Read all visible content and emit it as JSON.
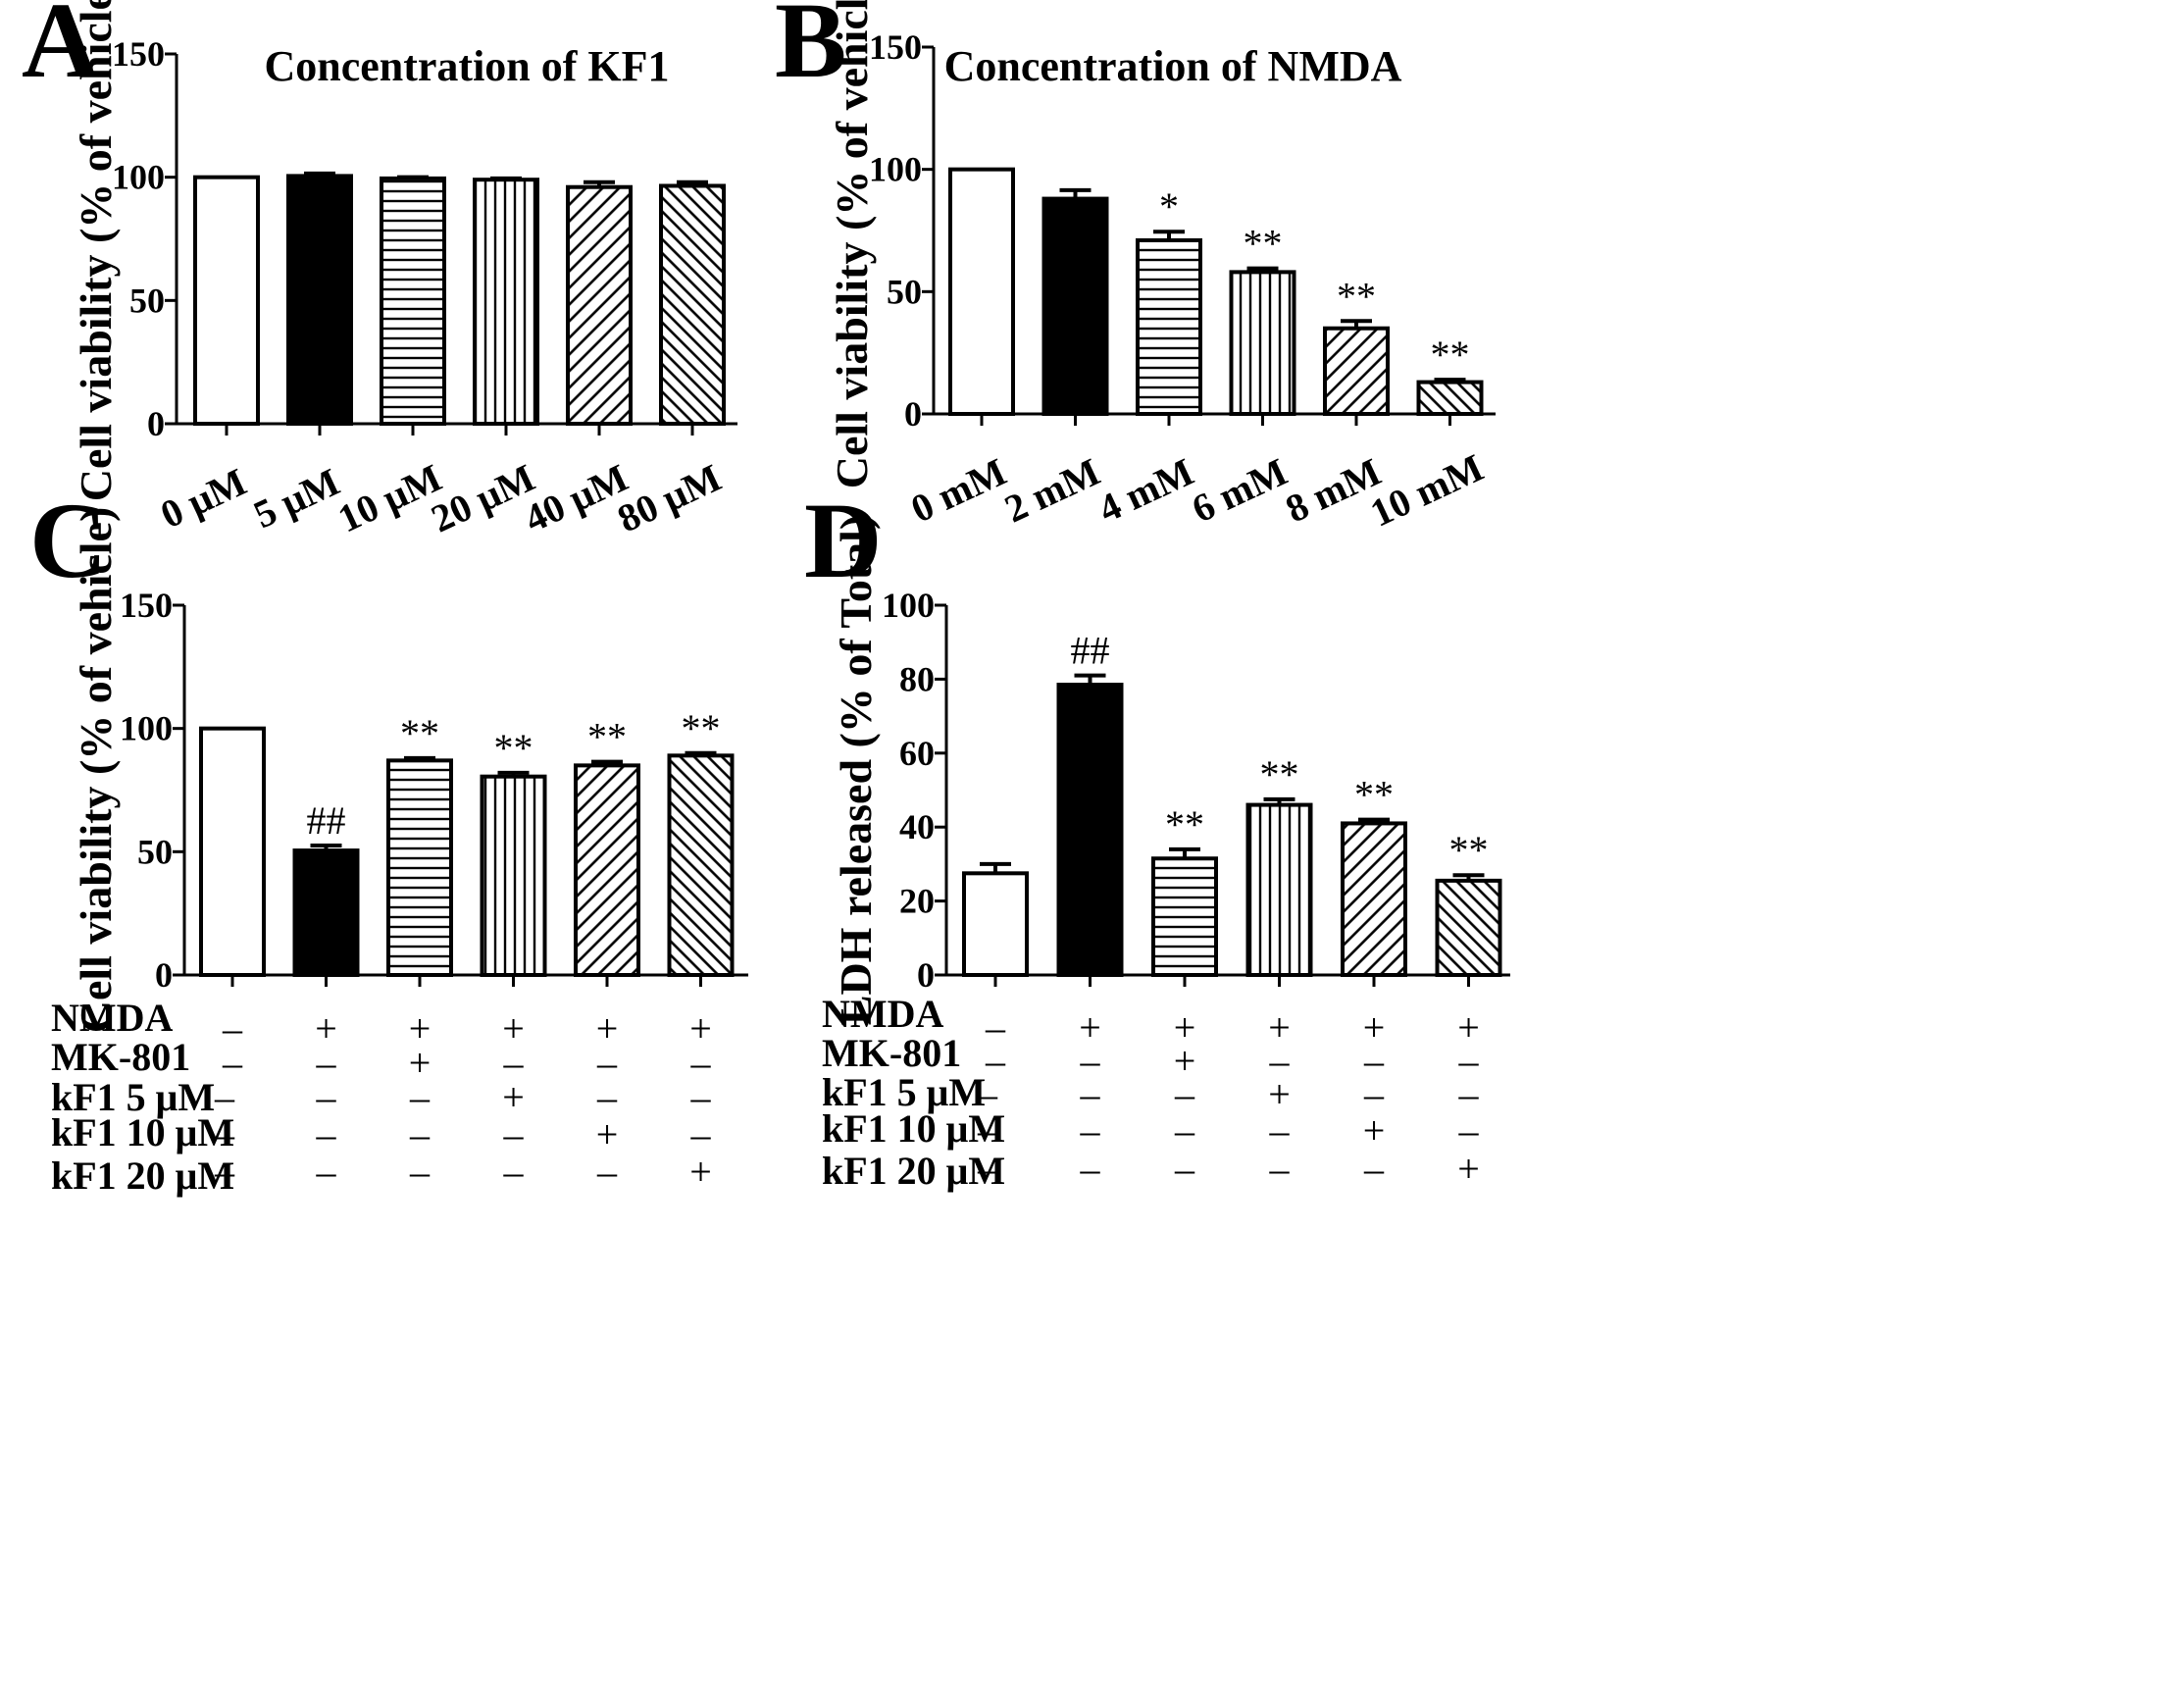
{
  "chart_data": [
    {
      "panel": "A",
      "type": "bar",
      "title": "Concentration of KF1",
      "ylabel": "Cell viability (% of vehicle)",
      "xlabel": "",
      "ylim": [
        0,
        150
      ],
      "yticks": [
        0,
        50,
        100,
        150
      ],
      "categories": [
        "0 μM",
        "5 μM",
        "10 μM",
        "20 μM",
        "40 μM",
        "80 μM"
      ],
      "values": [
        100,
        100.5,
        99.5,
        99,
        96,
        96.5
      ],
      "errors": [
        0,
        1,
        0.5,
        0.5,
        2,
        1.5
      ],
      "patterns": [
        "white",
        "black",
        "hlines",
        "vlines",
        "diag",
        "diag-rev"
      ],
      "significance": [
        "",
        "",
        "",
        "",
        "",
        ""
      ]
    },
    {
      "panel": "B",
      "type": "bar",
      "title": "Concentration of NMDA",
      "ylabel": "Cell viability (% of vehicle)",
      "xlabel": "",
      "ylim": [
        0,
        150
      ],
      "yticks": [
        0,
        50,
        100,
        150
      ],
      "categories": [
        "0 mM",
        "2 mM",
        "4 mM",
        "6 mM",
        "8 mM",
        "10 mM"
      ],
      "values": [
        100,
        88,
        71,
        58,
        35,
        13
      ],
      "errors": [
        0,
        3.5,
        3.5,
        1.5,
        3,
        1
      ],
      "patterns": [
        "white",
        "black",
        "hlines",
        "vlines",
        "diag",
        "diag-rev"
      ],
      "significance": [
        "",
        "",
        "*",
        "**",
        "**",
        "**"
      ]
    },
    {
      "panel": "C",
      "type": "bar",
      "title": "",
      "ylabel": "Cell viability (% of vehicle)",
      "xlabel": "",
      "ylim": [
        0,
        150
      ],
      "yticks": [
        0,
        50,
        100,
        150
      ],
      "values": [
        100,
        50.5,
        87,
        80.5,
        85,
        89
      ],
      "errors": [
        0,
        2,
        1,
        1.5,
        1.5,
        1
      ],
      "patterns": [
        "white",
        "black",
        "hlines",
        "vlines",
        "diag",
        "diag-rev"
      ],
      "significance": [
        "",
        "##",
        "**",
        "**",
        "**",
        "**"
      ],
      "treatment_rows": [
        {
          "label": "NMDA",
          "signs": [
            "–",
            "+",
            "+",
            "+",
            "+",
            "+"
          ]
        },
        {
          "label": "MK-801",
          "signs": [
            "–",
            "–",
            "+",
            "–",
            "–",
            "–"
          ]
        },
        {
          "label": "kF1 5 μM",
          "signs": [
            "–",
            "–",
            "–",
            "+",
            "–",
            "–"
          ]
        },
        {
          "label": "kF1 10 μM",
          "signs": [
            "–",
            "–",
            "–",
            "–",
            "+",
            "–"
          ]
        },
        {
          "label": "kF1 20 μM",
          "signs": [
            "–",
            "–",
            "–",
            "–",
            "–",
            "+"
          ]
        }
      ]
    },
    {
      "panel": "D",
      "type": "bar",
      "title": "",
      "ylabel": "LDH released (% of Total)",
      "xlabel": "",
      "ylim": [
        0,
        100
      ],
      "yticks": [
        0,
        20,
        40,
        60,
        80,
        100
      ],
      "values": [
        27.5,
        78.5,
        31.5,
        46,
        41,
        25.5
      ],
      "errors": [
        2.5,
        2.5,
        2.5,
        1.5,
        1,
        1.5
      ],
      "patterns": [
        "white",
        "black",
        "hlines",
        "vlines",
        "diag",
        "diag-rev"
      ],
      "significance": [
        "",
        "##",
        "**",
        "**",
        "**",
        "**"
      ],
      "treatment_rows": [
        {
          "label": "NMDA",
          "signs": [
            "–",
            "+",
            "+",
            "+",
            "+",
            "+"
          ]
        },
        {
          "label": "MK-801",
          "signs": [
            "–",
            "–",
            "+",
            "–",
            "–",
            "–"
          ]
        },
        {
          "label": "kF1 5 μM",
          "signs": [
            "–",
            "–",
            "–",
            "+",
            "–",
            "–"
          ]
        },
        {
          "label": "kF1 10 μM",
          "signs": [
            "–",
            "–",
            "–",
            "–",
            "+",
            "–"
          ]
        },
        {
          "label": "kF1 20 μM",
          "signs": [
            "–",
            "–",
            "–",
            "–",
            "–",
            "+"
          ]
        }
      ]
    }
  ]
}
